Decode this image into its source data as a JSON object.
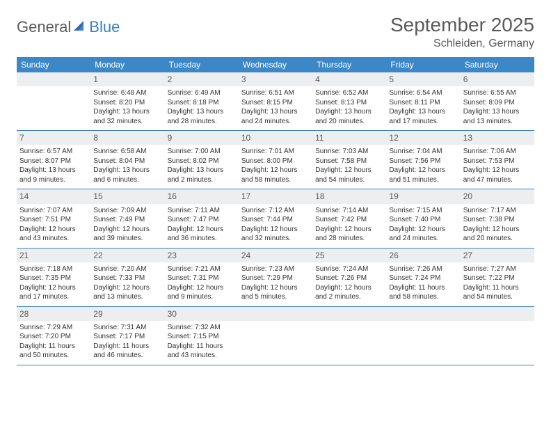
{
  "colors": {
    "header_bar": "#3b87c8",
    "accent": "#3b7fc4",
    "text_muted": "#5a5a5a",
    "daynum_bg": "#eceef0",
    "background": "#ffffff"
  },
  "typography": {
    "title_fontsize": 28,
    "location_fontsize": 16,
    "dow_fontsize": 12,
    "body_fontsize": 10,
    "font_family": "Arial"
  },
  "logo": {
    "part1": "General",
    "part2": "Blue"
  },
  "title": "September 2025",
  "location": "Schleiden, Germany",
  "dow": [
    "Sunday",
    "Monday",
    "Tuesday",
    "Wednesday",
    "Thursday",
    "Friday",
    "Saturday"
  ],
  "weeks": [
    [
      {
        "n": "",
        "sr": "",
        "ss": "",
        "dl": ""
      },
      {
        "n": "1",
        "sr": "Sunrise: 6:48 AM",
        "ss": "Sunset: 8:20 PM",
        "dl": "Daylight: 13 hours and 32 minutes."
      },
      {
        "n": "2",
        "sr": "Sunrise: 6:49 AM",
        "ss": "Sunset: 8:18 PM",
        "dl": "Daylight: 13 hours and 28 minutes."
      },
      {
        "n": "3",
        "sr": "Sunrise: 6:51 AM",
        "ss": "Sunset: 8:15 PM",
        "dl": "Daylight: 13 hours and 24 minutes."
      },
      {
        "n": "4",
        "sr": "Sunrise: 6:52 AM",
        "ss": "Sunset: 8:13 PM",
        "dl": "Daylight: 13 hours and 20 minutes."
      },
      {
        "n": "5",
        "sr": "Sunrise: 6:54 AM",
        "ss": "Sunset: 8:11 PM",
        "dl": "Daylight: 13 hours and 17 minutes."
      },
      {
        "n": "6",
        "sr": "Sunrise: 6:55 AM",
        "ss": "Sunset: 8:09 PM",
        "dl": "Daylight: 13 hours and 13 minutes."
      }
    ],
    [
      {
        "n": "7",
        "sr": "Sunrise: 6:57 AM",
        "ss": "Sunset: 8:07 PM",
        "dl": "Daylight: 13 hours and 9 minutes."
      },
      {
        "n": "8",
        "sr": "Sunrise: 6:58 AM",
        "ss": "Sunset: 8:04 PM",
        "dl": "Daylight: 13 hours and 6 minutes."
      },
      {
        "n": "9",
        "sr": "Sunrise: 7:00 AM",
        "ss": "Sunset: 8:02 PM",
        "dl": "Daylight: 13 hours and 2 minutes."
      },
      {
        "n": "10",
        "sr": "Sunrise: 7:01 AM",
        "ss": "Sunset: 8:00 PM",
        "dl": "Daylight: 12 hours and 58 minutes."
      },
      {
        "n": "11",
        "sr": "Sunrise: 7:03 AM",
        "ss": "Sunset: 7:58 PM",
        "dl": "Daylight: 12 hours and 54 minutes."
      },
      {
        "n": "12",
        "sr": "Sunrise: 7:04 AM",
        "ss": "Sunset: 7:56 PM",
        "dl": "Daylight: 12 hours and 51 minutes."
      },
      {
        "n": "13",
        "sr": "Sunrise: 7:06 AM",
        "ss": "Sunset: 7:53 PM",
        "dl": "Daylight: 12 hours and 47 minutes."
      }
    ],
    [
      {
        "n": "14",
        "sr": "Sunrise: 7:07 AM",
        "ss": "Sunset: 7:51 PM",
        "dl": "Daylight: 12 hours and 43 minutes."
      },
      {
        "n": "15",
        "sr": "Sunrise: 7:09 AM",
        "ss": "Sunset: 7:49 PM",
        "dl": "Daylight: 12 hours and 39 minutes."
      },
      {
        "n": "16",
        "sr": "Sunrise: 7:11 AM",
        "ss": "Sunset: 7:47 PM",
        "dl": "Daylight: 12 hours and 36 minutes."
      },
      {
        "n": "17",
        "sr": "Sunrise: 7:12 AM",
        "ss": "Sunset: 7:44 PM",
        "dl": "Daylight: 12 hours and 32 minutes."
      },
      {
        "n": "18",
        "sr": "Sunrise: 7:14 AM",
        "ss": "Sunset: 7:42 PM",
        "dl": "Daylight: 12 hours and 28 minutes."
      },
      {
        "n": "19",
        "sr": "Sunrise: 7:15 AM",
        "ss": "Sunset: 7:40 PM",
        "dl": "Daylight: 12 hours and 24 minutes."
      },
      {
        "n": "20",
        "sr": "Sunrise: 7:17 AM",
        "ss": "Sunset: 7:38 PM",
        "dl": "Daylight: 12 hours and 20 minutes."
      }
    ],
    [
      {
        "n": "21",
        "sr": "Sunrise: 7:18 AM",
        "ss": "Sunset: 7:35 PM",
        "dl": "Daylight: 12 hours and 17 minutes."
      },
      {
        "n": "22",
        "sr": "Sunrise: 7:20 AM",
        "ss": "Sunset: 7:33 PM",
        "dl": "Daylight: 12 hours and 13 minutes."
      },
      {
        "n": "23",
        "sr": "Sunrise: 7:21 AM",
        "ss": "Sunset: 7:31 PM",
        "dl": "Daylight: 12 hours and 9 minutes."
      },
      {
        "n": "24",
        "sr": "Sunrise: 7:23 AM",
        "ss": "Sunset: 7:29 PM",
        "dl": "Daylight: 12 hours and 5 minutes."
      },
      {
        "n": "25",
        "sr": "Sunrise: 7:24 AM",
        "ss": "Sunset: 7:26 PM",
        "dl": "Daylight: 12 hours and 2 minutes."
      },
      {
        "n": "26",
        "sr": "Sunrise: 7:26 AM",
        "ss": "Sunset: 7:24 PM",
        "dl": "Daylight: 11 hours and 58 minutes."
      },
      {
        "n": "27",
        "sr": "Sunrise: 7:27 AM",
        "ss": "Sunset: 7:22 PM",
        "dl": "Daylight: 11 hours and 54 minutes."
      }
    ],
    [
      {
        "n": "28",
        "sr": "Sunrise: 7:29 AM",
        "ss": "Sunset: 7:20 PM",
        "dl": "Daylight: 11 hours and 50 minutes."
      },
      {
        "n": "29",
        "sr": "Sunrise: 7:31 AM",
        "ss": "Sunset: 7:17 PM",
        "dl": "Daylight: 11 hours and 46 minutes."
      },
      {
        "n": "30",
        "sr": "Sunrise: 7:32 AM",
        "ss": "Sunset: 7:15 PM",
        "dl": "Daylight: 11 hours and 43 minutes."
      },
      {
        "n": "",
        "sr": "",
        "ss": "",
        "dl": ""
      },
      {
        "n": "",
        "sr": "",
        "ss": "",
        "dl": ""
      },
      {
        "n": "",
        "sr": "",
        "ss": "",
        "dl": ""
      },
      {
        "n": "",
        "sr": "",
        "ss": "",
        "dl": ""
      }
    ]
  ]
}
